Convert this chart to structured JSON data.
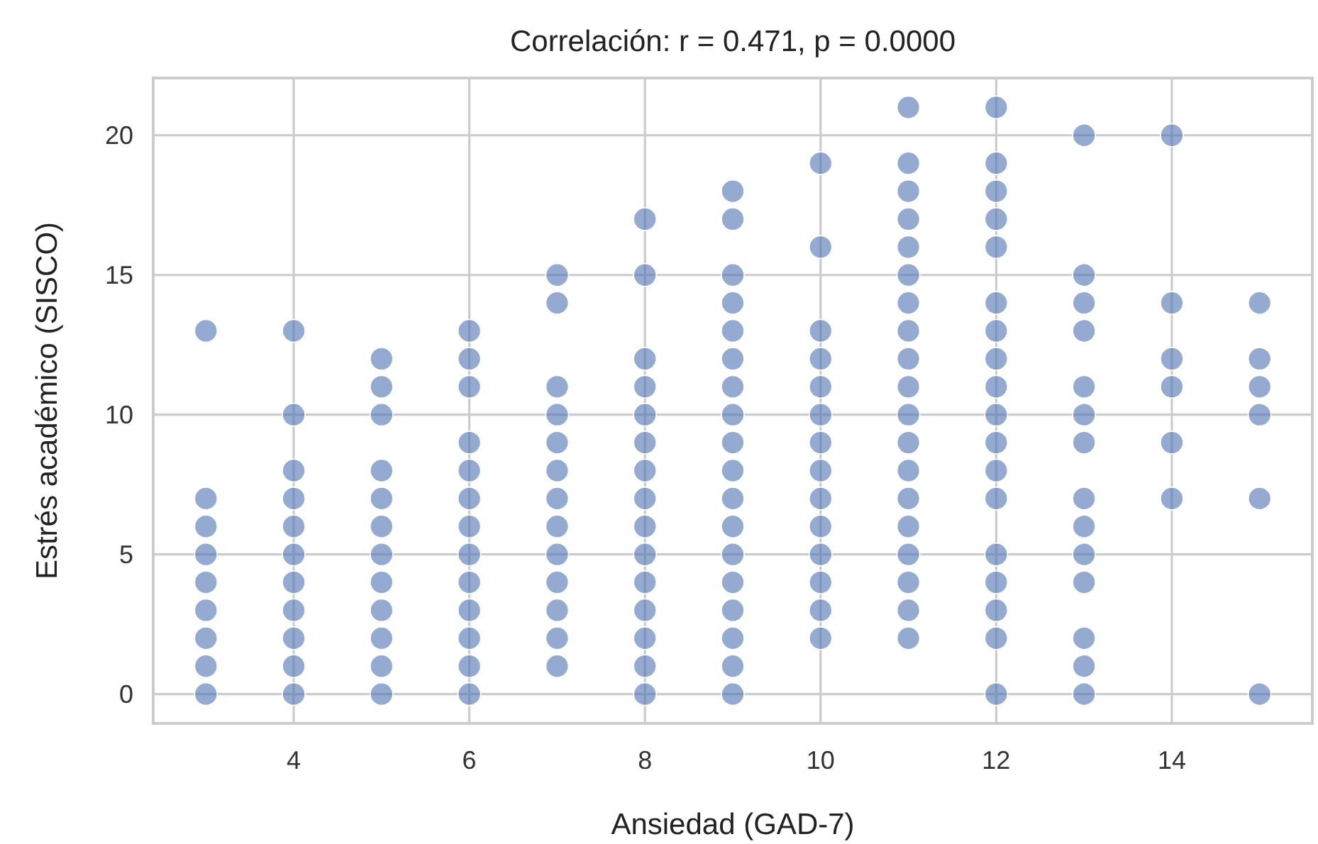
{
  "chart_data": {
    "type": "scatter",
    "title": "Correlación: r = 0.471, p = 0.0000",
    "xlabel": "Ansiedad (GAD-7)",
    "ylabel": "Estrés académico (SISCO)",
    "xlim": [
      2.4,
      15.6
    ],
    "ylim": [
      -1.05,
      22.05
    ],
    "xticks": [
      4,
      6,
      8,
      10,
      12,
      14
    ],
    "yticks": [
      0,
      5,
      10,
      15,
      20
    ],
    "grid": true,
    "marker": "circle",
    "series": [
      {
        "color": "#4c72b0",
        "x": [
          3,
          3,
          3,
          3,
          3,
          3,
          3,
          3,
          3,
          4,
          4,
          4,
          4,
          4,
          4,
          4,
          4,
          4,
          4,
          4,
          5,
          5,
          5,
          5,
          5,
          5,
          5,
          5,
          5,
          5,
          5,
          5,
          6,
          6,
          6,
          6,
          6,
          6,
          6,
          6,
          6,
          6,
          6,
          6,
          6,
          7,
          7,
          7,
          7,
          7,
          7,
          7,
          7,
          7,
          7,
          7,
          7,
          7,
          8,
          8,
          8,
          8,
          8,
          8,
          8,
          8,
          8,
          8,
          8,
          8,
          8,
          8,
          8,
          9,
          9,
          9,
          9,
          9,
          9,
          9,
          9,
          9,
          9,
          9,
          9,
          9,
          9,
          9,
          9,
          9,
          9,
          10,
          10,
          10,
          10,
          10,
          10,
          10,
          10,
          10,
          10,
          10,
          10,
          10,
          10,
          11,
          11,
          11,
          11,
          11,
          11,
          11,
          11,
          11,
          11,
          11,
          11,
          11,
          11,
          11,
          11,
          11,
          11,
          11,
          12,
          12,
          12,
          12,
          12,
          12,
          12,
          12,
          12,
          12,
          12,
          12,
          12,
          12,
          12,
          12,
          12,
          12,
          13,
          13,
          13,
          13,
          13,
          13,
          13,
          13,
          13,
          13,
          13,
          13,
          13,
          13,
          14,
          14,
          14,
          14,
          14,
          14,
          15,
          15,
          15,
          15,
          15,
          15
        ],
        "values": [
          0,
          1,
          2,
          3,
          4,
          5,
          6,
          7,
          13,
          0,
          1,
          2,
          3,
          4,
          5,
          6,
          7,
          8,
          10,
          13,
          0,
          1,
          2,
          3,
          4,
          5,
          6,
          7,
          8,
          10,
          11,
          12,
          0,
          1,
          2,
          3,
          4,
          5,
          6,
          7,
          8,
          9,
          11,
          12,
          13,
          1,
          2,
          3,
          4,
          5,
          6,
          7,
          8,
          9,
          10,
          11,
          14,
          15,
          0,
          1,
          2,
          3,
          4,
          5,
          6,
          7,
          8,
          9,
          10,
          11,
          12,
          15,
          17,
          0,
          1,
          2,
          3,
          4,
          5,
          6,
          7,
          8,
          9,
          10,
          11,
          12,
          13,
          14,
          15,
          17,
          18,
          2,
          3,
          4,
          5,
          6,
          7,
          8,
          9,
          10,
          11,
          12,
          13,
          16,
          19,
          2,
          3,
          4,
          5,
          6,
          7,
          8,
          9,
          10,
          11,
          12,
          13,
          14,
          15,
          16,
          17,
          18,
          19,
          21,
          0,
          2,
          3,
          4,
          5,
          7,
          8,
          9,
          10,
          11,
          12,
          13,
          14,
          16,
          17,
          18,
          19,
          21,
          0,
          1,
          2,
          4,
          5,
          6,
          7,
          9,
          10,
          11,
          13,
          14,
          15,
          20,
          7,
          9,
          11,
          12,
          14,
          20,
          0,
          7,
          10,
          11,
          12,
          14
        ]
      }
    ]
  }
}
